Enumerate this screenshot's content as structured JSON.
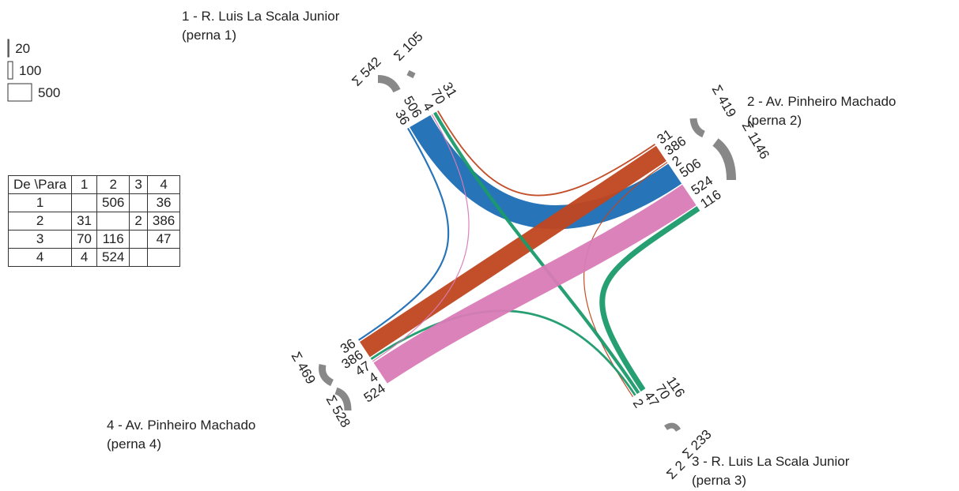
{
  "legend": {
    "scale": [
      20,
      100,
      500
    ]
  },
  "table": {
    "header": [
      "De \\Para",
      "1",
      "2",
      "3",
      "4"
    ],
    "rows": [
      [
        "1",
        null,
        506,
        null,
        36
      ],
      [
        "2",
        31,
        null,
        2,
        386
      ],
      [
        "3",
        70,
        116,
        null,
        47
      ],
      [
        "4",
        4,
        524,
        null,
        null
      ]
    ]
  },
  "legs": [
    {
      "name": "1 - R. Luis La Scala Junior",
      "note": "(perna 1)",
      "sum_out": "Σ 542",
      "sum_in": "Σ 105"
    },
    {
      "name": "2 - Av. Pinheiro Machado",
      "note": "(perna 2)",
      "sum_out": "Σ 419",
      "sum_in": "Σ 1146"
    },
    {
      "name": "3 - R. Luis La Scala Junior",
      "note": "(perna 3)",
      "sum_out": "Σ 233",
      "sum_in": "Σ 2"
    },
    {
      "name": "4 - Av. Pinheiro Machado",
      "note": "(perna 4)",
      "sum_out": "Σ 528",
      "sum_in": "Σ 469"
    }
  ],
  "flows": [
    {
      "from": 1,
      "to": 2,
      "value": 506,
      "color": "#1b6db4"
    },
    {
      "from": 1,
      "to": 4,
      "value": 36,
      "color": "#1b6db4"
    },
    {
      "from": 2,
      "to": 1,
      "value": 31,
      "color": "#c0461f"
    },
    {
      "from": 2,
      "to": 3,
      "value": 2,
      "color": "#c0461f"
    },
    {
      "from": 2,
      "to": 4,
      "value": 386,
      "color": "#c0461f"
    },
    {
      "from": 3,
      "to": 1,
      "value": 70,
      "color": "#1a9a6b"
    },
    {
      "from": 3,
      "to": 2,
      "value": 116,
      "color": "#1a9a6b"
    },
    {
      "from": 3,
      "to": 4,
      "value": 47,
      "color": "#1a9a6b"
    },
    {
      "from": 4,
      "to": 1,
      "value": 4,
      "color": "#d97bb6"
    },
    {
      "from": 4,
      "to": 2,
      "value": 524,
      "color": "#d97bb6"
    }
  ]
}
